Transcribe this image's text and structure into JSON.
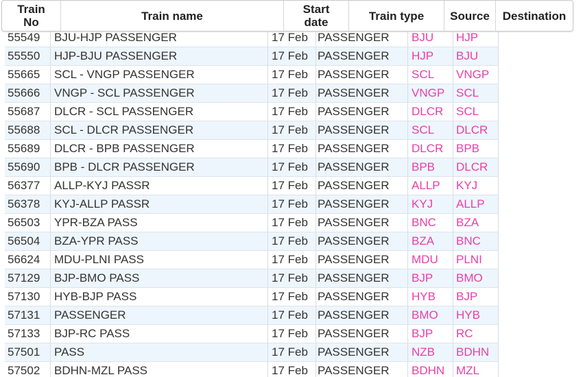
{
  "columns": {
    "train_no": "Train\nNo",
    "train_no_line1": "Train",
    "train_no_line2": "No",
    "train_name": "Train name",
    "start_date_line1": "Start",
    "start_date_line2": "date",
    "train_type": "Train type",
    "source": "Source",
    "destination": "Destination"
  },
  "rows": [
    {
      "no": "55549",
      "name": "BJU-HJP PASSENGER",
      "date": "17 Feb",
      "type": "PASSENGER",
      "src": "BJU",
      "dst": "HJP"
    },
    {
      "no": "55550",
      "name": "HJP-BJU PASSENGER",
      "date": "17 Feb",
      "type": "PASSENGER",
      "src": "HJP",
      "dst": "BJU"
    },
    {
      "no": "55665",
      "name": "SCL - VNGP PASSENGER",
      "date": "17 Feb",
      "type": "PASSENGER",
      "src": "SCL",
      "dst": "VNGP"
    },
    {
      "no": "55666",
      "name": "VNGP - SCL PASSENGER",
      "date": "17 Feb",
      "type": "PASSENGER",
      "src": "VNGP",
      "dst": "SCL"
    },
    {
      "no": "55687",
      "name": "DLCR - SCL PASSENGER",
      "date": "17 Feb",
      "type": "PASSENGER",
      "src": "DLCR",
      "dst": "SCL"
    },
    {
      "no": "55688",
      "name": "SCL - DLCR PASSENGER",
      "date": "17 Feb",
      "type": "PASSENGER",
      "src": "SCL",
      "dst": "DLCR"
    },
    {
      "no": "55689",
      "name": "DLCR - BPB PASSENGER",
      "date": "17 Feb",
      "type": "PASSENGER",
      "src": "DLCR",
      "dst": "BPB"
    },
    {
      "no": "55690",
      "name": "BPB - DLCR PASSENGER",
      "date": "17 Feb",
      "type": "PASSENGER",
      "src": "BPB",
      "dst": "DLCR"
    },
    {
      "no": "56377",
      "name": "ALLP-KYJ PASSR",
      "date": "17 Feb",
      "type": "PASSENGER",
      "src": "ALLP",
      "dst": "KYJ"
    },
    {
      "no": "56378",
      "name": "KYJ-ALLP PASSR",
      "date": "17 Feb",
      "type": "PASSENGER",
      "src": "KYJ",
      "dst": "ALLP"
    },
    {
      "no": "56503",
      "name": "YPR-BZA PASS",
      "date": "17 Feb",
      "type": "PASSENGER",
      "src": "BNC",
      "dst": "BZA"
    },
    {
      "no": "56504",
      "name": "BZA-YPR PASS",
      "date": "17 Feb",
      "type": "PASSENGER",
      "src": "BZA",
      "dst": "BNC"
    },
    {
      "no": "56624",
      "name": "MDU-PLNI PASS",
      "date": "17 Feb",
      "type": "PASSENGER",
      "src": "MDU",
      "dst": "PLNI"
    },
    {
      "no": "57129",
      "name": "BJP-BMO PASS",
      "date": "17 Feb",
      "type": "PASSENGER",
      "src": "BJP",
      "dst": "BMO"
    },
    {
      "no": "57130",
      "name": "HYB-BJP PASS",
      "date": "17 Feb",
      "type": "PASSENGER",
      "src": "HYB",
      "dst": "BJP"
    },
    {
      "no": "57131",
      "name": "PASSENGER",
      "date": "17 Feb",
      "type": "PASSENGER",
      "src": "BMO",
      "dst": "HYB"
    },
    {
      "no": "57133",
      "name": "BJP-RC PASS",
      "date": "17 Feb",
      "type": "PASSENGER",
      "src": "BJP",
      "dst": "RC"
    },
    {
      "no": "57501",
      "name": "PASS",
      "date": "17 Feb",
      "type": "PASSENGER",
      "src": "NZB",
      "dst": "BDHN"
    },
    {
      "no": "57502",
      "name": "BDHN-MZL PASS",
      "date": "17 Feb",
      "type": "PASSENGER",
      "src": "BDHN",
      "dst": "MZL"
    }
  ],
  "colors": {
    "station_link": "#e83fa8",
    "row_alt_bg": "#eef6fd"
  }
}
